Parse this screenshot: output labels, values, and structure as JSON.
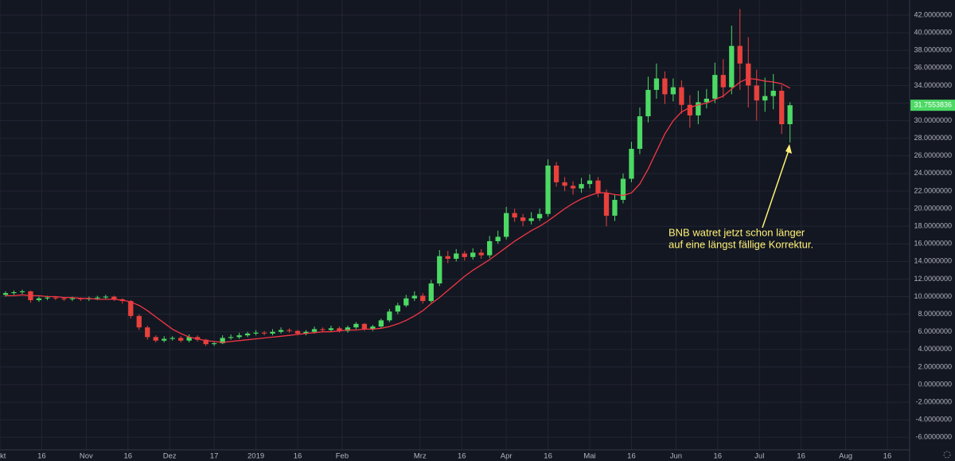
{
  "chart_data": {
    "type": "candlestick",
    "up_color": "#4cd964",
    "down_color": "#e8413c",
    "grid": true,
    "x": [
      "2018-10-03",
      "2018-10-06",
      "2018-10-09",
      "2018-10-12",
      "2018-10-15",
      "2018-10-18",
      "2018-10-21",
      "2018-10-24",
      "2018-10-27",
      "2018-10-30",
      "2018-11-02",
      "2018-11-05",
      "2018-11-08",
      "2018-11-11",
      "2018-11-14",
      "2018-11-17",
      "2018-11-20",
      "2018-11-23",
      "2018-11-26",
      "2018-11-29",
      "2018-12-02",
      "2018-12-05",
      "2018-12-08",
      "2018-12-11",
      "2018-12-14",
      "2018-12-17",
      "2018-12-20",
      "2018-12-23",
      "2018-12-26",
      "2018-12-29",
      "2019-01-01",
      "2019-01-04",
      "2019-01-07",
      "2019-01-10",
      "2019-01-13",
      "2019-01-16",
      "2019-01-19",
      "2019-01-22",
      "2019-01-25",
      "2019-01-28",
      "2019-01-31",
      "2019-02-03",
      "2019-02-06",
      "2019-02-09",
      "2019-02-12",
      "2019-02-15",
      "2019-02-18",
      "2019-02-21",
      "2019-02-24",
      "2019-02-27",
      "2019-03-02",
      "2019-03-05",
      "2019-03-08",
      "2019-03-11",
      "2019-03-14",
      "2019-03-17",
      "2019-03-20",
      "2019-03-23",
      "2019-03-26",
      "2019-03-29",
      "2019-04-01",
      "2019-04-04",
      "2019-04-07",
      "2019-04-10",
      "2019-04-13",
      "2019-04-16",
      "2019-04-19",
      "2019-04-22",
      "2019-04-25",
      "2019-04-28",
      "2019-05-01",
      "2019-05-04",
      "2019-05-07",
      "2019-05-10",
      "2019-05-13",
      "2019-05-16",
      "2019-05-19",
      "2019-05-22",
      "2019-05-25",
      "2019-05-28",
      "2019-05-31",
      "2019-06-03",
      "2019-06-06",
      "2019-06-09",
      "2019-06-12",
      "2019-06-15",
      "2019-06-18",
      "2019-06-21",
      "2019-06-24",
      "2019-06-27",
      "2019-06-30",
      "2019-07-03",
      "2019-07-06",
      "2019-07-09",
      "2019-07-12"
    ],
    "open": [
      10.2,
      10.4,
      10.5,
      10.6,
      9.6,
      9.8,
      9.9,
      9.8,
      9.7,
      9.8,
      9.7,
      9.8,
      9.9,
      10.0,
      9.7,
      9.5,
      7.8,
      6.5,
      5.4,
      5.0,
      5.2,
      5.3,
      5.0,
      5.4,
      5.1,
      4.6,
      4.7,
      5.3,
      5.4,
      5.6,
      5.8,
      5.9,
      5.8,
      6.0,
      6.2,
      6.1,
      5.8,
      6.0,
      6.3,
      6.2,
      6.4,
      6.1,
      6.5,
      6.9,
      6.3,
      6.6,
      7.3,
      8.3,
      9.0,
      9.8,
      10.1,
      9.5,
      11.5,
      14.6,
      14.3,
      14.9,
      14.5,
      15.0,
      14.7,
      16.3,
      16.8,
      19.5,
      19.0,
      18.6,
      18.9,
      19.4,
      24.9,
      23.0,
      22.6,
      22.3,
      22.8,
      23.2,
      21.8,
      19.2,
      21.0,
      23.4,
      26.8,
      30.5,
      33.5,
      34.8,
      33.0,
      33.8,
      31.8,
      30.6,
      32.1,
      32.5,
      35.2,
      33.8,
      38.5,
      36.5,
      34.0,
      32.3,
      32.8,
      33.4,
      29.6
    ],
    "high": [
      10.6,
      10.7,
      10.8,
      10.7,
      10.0,
      10.1,
      10.0,
      9.9,
      10.0,
      9.9,
      10.0,
      10.1,
      10.2,
      10.1,
      9.8,
      9.6,
      8.0,
      6.7,
      5.6,
      5.5,
      5.5,
      5.5,
      5.7,
      5.6,
      5.2,
      4.9,
      5.6,
      5.7,
      5.9,
      6.0,
      6.2,
      6.1,
      6.3,
      6.5,
      6.4,
      6.2,
      6.2,
      6.6,
      6.5,
      6.7,
      6.6,
      6.7,
      7.1,
      7.0,
      6.8,
      7.5,
      8.6,
      9.3,
      10.2,
      10.6,
      10.4,
      11.9,
      15.3,
      15.2,
      15.4,
      15.2,
      15.5,
      15.4,
      16.9,
      17.5,
      20.2,
      20.0,
      19.4,
      19.6,
      20.0,
      25.6,
      25.3,
      23.6,
      23.1,
      23.5,
      23.9,
      23.6,
      22.2,
      21.6,
      24.0,
      27.6,
      31.5,
      35.0,
      36.5,
      35.6,
      34.8,
      34.6,
      32.9,
      33.4,
      33.6,
      36.6,
      37.0,
      40.8,
      42.7,
      39.5,
      35.8,
      34.9,
      35.3,
      34.0,
      32.1
    ],
    "low": [
      10.0,
      10.2,
      10.3,
      9.3,
      9.4,
      9.6,
      9.6,
      9.5,
      9.5,
      9.5,
      9.5,
      9.6,
      9.7,
      9.5,
      9.2,
      7.5,
      6.2,
      5.1,
      4.8,
      4.8,
      5.0,
      4.8,
      4.8,
      4.9,
      4.4,
      4.4,
      4.6,
      5.1,
      5.2,
      5.4,
      5.6,
      5.6,
      5.6,
      5.8,
      5.9,
      5.6,
      5.6,
      5.8,
      6.0,
      6.0,
      5.9,
      5.9,
      6.3,
      6.1,
      6.1,
      6.4,
      7.1,
      8.0,
      8.8,
      9.5,
      9.2,
      9.3,
      11.2,
      13.8,
      14.0,
      14.1,
      14.2,
      14.3,
      14.4,
      16.0,
      16.5,
      18.5,
      18.0,
      18.2,
      18.6,
      19.1,
      22.5,
      22.0,
      21.6,
      21.8,
      22.3,
      21.3,
      18.0,
      18.6,
      20.6,
      23.0,
      26.2,
      29.8,
      32.5,
      31.9,
      32.2,
      30.8,
      29.2,
      29.6,
      31.4,
      32.0,
      32.6,
      33.0,
      33.5,
      31.5,
      30.0,
      31.0,
      31.3,
      28.5,
      27.5
    ],
    "close": [
      10.4,
      10.5,
      10.6,
      9.6,
      9.8,
      9.9,
      9.8,
      9.7,
      9.8,
      9.7,
      9.8,
      9.9,
      10.0,
      9.7,
      9.5,
      7.8,
      6.5,
      5.4,
      5.0,
      5.2,
      5.3,
      5.0,
      5.4,
      5.1,
      4.6,
      4.7,
      5.3,
      5.4,
      5.6,
      5.8,
      5.9,
      5.8,
      6.0,
      6.2,
      6.1,
      5.8,
      6.0,
      6.3,
      6.2,
      6.4,
      6.1,
      6.5,
      6.9,
      6.3,
      6.6,
      7.3,
      8.3,
      9.0,
      9.8,
      10.1,
      9.5,
      11.5,
      14.6,
      14.3,
      14.9,
      14.5,
      15.0,
      14.7,
      16.3,
      16.8,
      19.5,
      19.0,
      18.6,
      18.9,
      19.4,
      24.9,
      23.0,
      22.6,
      22.3,
      22.8,
      23.2,
      21.8,
      19.2,
      21.0,
      23.4,
      26.8,
      30.5,
      33.5,
      34.8,
      33.0,
      33.8,
      31.8,
      30.6,
      32.1,
      32.5,
      35.2,
      33.8,
      38.5,
      36.5,
      34.0,
      32.3,
      32.8,
      33.4,
      29.6,
      31.7553836
    ],
    "ma": {
      "color": "#f23645",
      "values": [
        10.1,
        10.1,
        10.2,
        10.1,
        10.1,
        10.0,
        10.0,
        9.9,
        9.9,
        9.8,
        9.8,
        9.7,
        9.7,
        9.7,
        9.6,
        9.4,
        9.0,
        8.4,
        7.7,
        7.0,
        6.3,
        5.8,
        5.4,
        5.2,
        5.0,
        4.9,
        4.8,
        4.9,
        5.0,
        5.1,
        5.2,
        5.3,
        5.4,
        5.5,
        5.6,
        5.7,
        5.8,
        5.9,
        6.0,
        6.0,
        6.1,
        6.2,
        6.2,
        6.3,
        6.3,
        6.4,
        6.6,
        6.9,
        7.3,
        7.8,
        8.4,
        9.2,
        9.9,
        10.7,
        11.5,
        12.3,
        13.0,
        13.6,
        14.2,
        14.9,
        15.6,
        16.3,
        16.9,
        17.5,
        18.0,
        18.6,
        19.3,
        20.0,
        20.6,
        21.1,
        21.5,
        21.8,
        21.8,
        21.6,
        21.5,
        21.8,
        22.8,
        24.5,
        26.5,
        28.5,
        30.0,
        31.0,
        31.5,
        31.8,
        32.0,
        32.4,
        32.8,
        33.6,
        34.4,
        34.8,
        34.7,
        34.5,
        34.4,
        34.2,
        33.7
      ]
    },
    "last_price": 31.7553836,
    "xlim": [
      "2018-10-01",
      "2019-08-24"
    ],
    "xticks": [
      {
        "value": "2018-10-01",
        "label": "Okt"
      },
      {
        "value": "2018-10-16",
        "label": "16"
      },
      {
        "value": "2018-11-01",
        "label": "Nov"
      },
      {
        "value": "2018-11-16",
        "label": "16"
      },
      {
        "value": "2018-12-01",
        "label": "Dez"
      },
      {
        "value": "2018-12-17",
        "label": "17"
      },
      {
        "value": "2019-01-01",
        "label": "2019"
      },
      {
        "value": "2019-01-16",
        "label": "16"
      },
      {
        "value": "2019-02-01",
        "label": "Feb"
      },
      {
        "value": "2019-03-01",
        "label": "Mrz"
      },
      {
        "value": "2019-03-16",
        "label": "16"
      },
      {
        "value": "2019-04-01",
        "label": "Apr"
      },
      {
        "value": "2019-04-16",
        "label": "16"
      },
      {
        "value": "2019-05-01",
        "label": "Mai"
      },
      {
        "value": "2019-05-16",
        "label": "16"
      },
      {
        "value": "2019-06-01",
        "label": "Jun"
      },
      {
        "value": "2019-06-16",
        "label": "16"
      },
      {
        "value": "2019-07-01",
        "label": "Jul"
      },
      {
        "value": "2019-07-16",
        "label": "16"
      },
      {
        "value": "2019-08-01",
        "label": "Aug"
      },
      {
        "value": "2019-08-16",
        "label": "16"
      }
    ],
    "ylim": [
      -7.42,
      43.72
    ],
    "yticks": [
      {
        "value": 42,
        "label": "42.0000000"
      },
      {
        "value": 40,
        "label": "40.0000000"
      },
      {
        "value": 38,
        "label": "38.0000000"
      },
      {
        "value": 36,
        "label": "36.0000000"
      },
      {
        "value": 34,
        "label": "34.0000000"
      },
      {
        "value": 32,
        "label": "32.0000000"
      },
      {
        "value": 30,
        "label": "30.0000000"
      },
      {
        "value": 28,
        "label": "28.0000000"
      },
      {
        "value": 26,
        "label": "26.0000000"
      },
      {
        "value": 24,
        "label": "24.0000000"
      },
      {
        "value": 22,
        "label": "22.0000000"
      },
      {
        "value": 20,
        "label": "20.0000000"
      },
      {
        "value": 18,
        "label": "18.0000000"
      },
      {
        "value": 16,
        "label": "16.0000000"
      },
      {
        "value": 14,
        "label": "14.0000000"
      },
      {
        "value": 12,
        "label": "12.0000000"
      },
      {
        "value": 10,
        "label": "10.0000000"
      },
      {
        "value": 8,
        "label": "8.0000000"
      },
      {
        "value": 6,
        "label": "6.0000000"
      },
      {
        "value": 4,
        "label": "4.0000000"
      },
      {
        "value": 2,
        "label": "2.0000000"
      },
      {
        "value": 0,
        "label": "0.0000000"
      },
      {
        "value": -2,
        "label": "-2.0000000"
      },
      {
        "value": -4,
        "label": "-4.0000000"
      },
      {
        "value": -6,
        "label": "-6.0000000"
      }
    ],
    "annotations": [
      "BNB watret jetzt schon länger",
      "auf eine längst fällige Korrektur."
    ]
  }
}
